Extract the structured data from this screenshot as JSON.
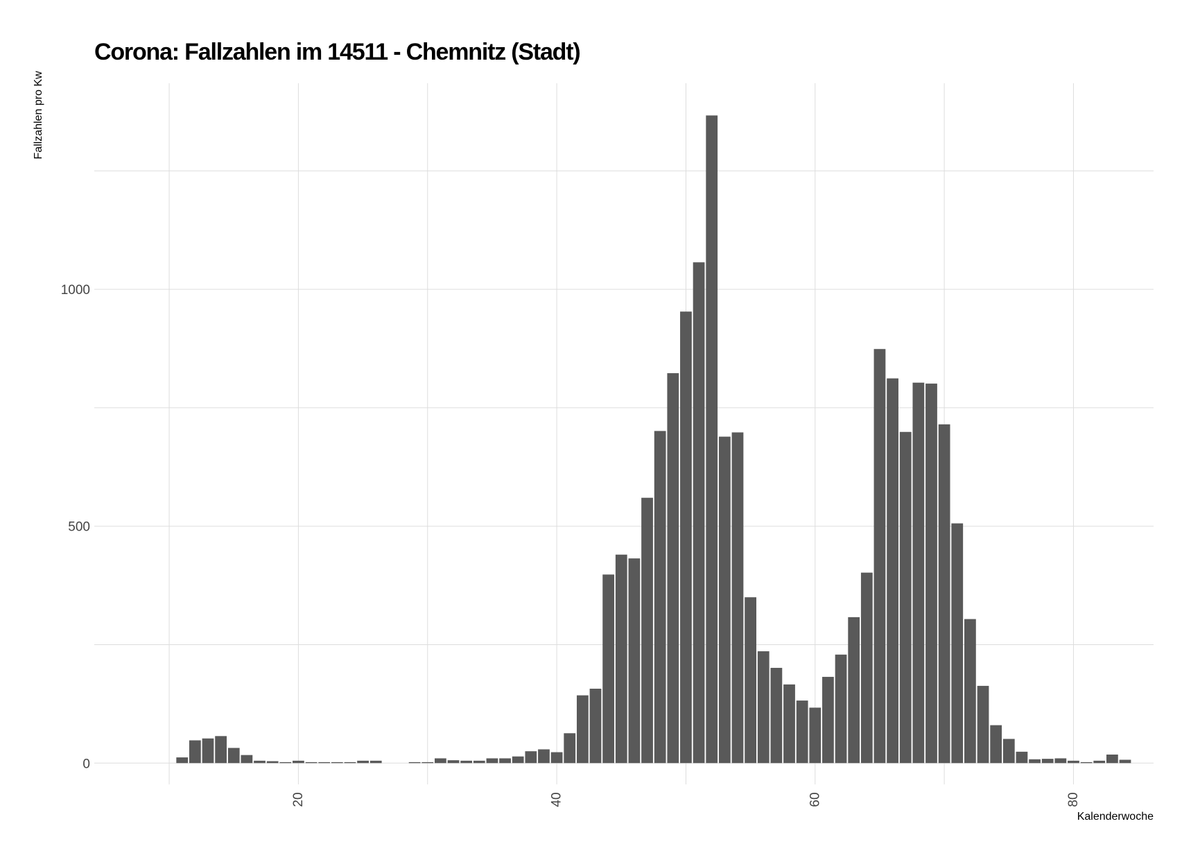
{
  "chart_data": {
    "type": "bar",
    "title": "Corona: Fallzahlen im 14511 - Chemnitz (Stadt)",
    "xlabel": "Kalenderwoche",
    "ylabel": "Fallzahlen pro Kw",
    "xlim": [
      4.2,
      86.2
    ],
    "ylim": [
      -45,
      1435
    ],
    "x_major_ticks": [
      20,
      40,
      60,
      80
    ],
    "x_minor_ticks": [
      10,
      30,
      50,
      70
    ],
    "y_major_ticks": [
      0,
      500,
      1000
    ],
    "y_minor_ticks": [
      250,
      750,
      1250
    ],
    "grid": true,
    "bar_color": "#595959",
    "grid_color": "#dddddd",
    "x": [
      11,
      12,
      13,
      14,
      15,
      16,
      17,
      18,
      19,
      20,
      21,
      22,
      23,
      24,
      25,
      26,
      27,
      28,
      29,
      30,
      31,
      32,
      33,
      34,
      35,
      36,
      37,
      38,
      39,
      40,
      41,
      42,
      43,
      44,
      45,
      46,
      47,
      48,
      49,
      50,
      51,
      52,
      53,
      54,
      55,
      56,
      57,
      58,
      59,
      60,
      61,
      62,
      63,
      64,
      65,
      66,
      67,
      68,
      69,
      70,
      71,
      72,
      73,
      74,
      75,
      76,
      77,
      78,
      79,
      80,
      81,
      82,
      83,
      84
    ],
    "values": [
      12,
      48,
      52,
      57,
      32,
      17,
      5,
      4,
      2,
      5,
      2,
      2,
      2,
      2,
      5,
      5,
      0,
      0,
      2,
      2,
      10,
      6,
      5,
      5,
      10,
      10,
      14,
      25,
      29,
      23,
      63,
      143,
      157,
      398,
      440,
      432,
      560,
      701,
      823,
      953,
      1057,
      1367,
      689,
      698,
      350,
      236,
      201,
      166,
      132,
      117,
      182,
      229,
      308,
      402,
      874,
      812,
      699,
      803,
      801,
      715,
      506,
      304,
      163,
      80,
      51,
      24,
      8,
      9,
      10,
      5,
      2,
      5,
      18,
      7
    ]
  }
}
